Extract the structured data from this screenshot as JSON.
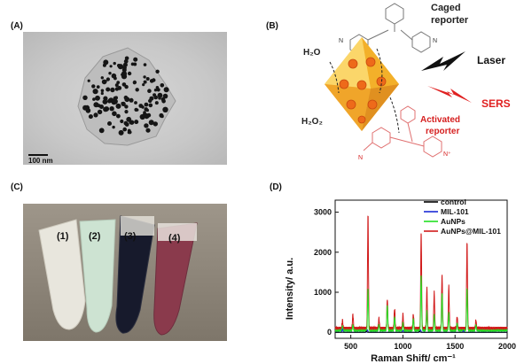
{
  "panels": {
    "a": {
      "label": "(A)",
      "scale_text": "100 nm"
    },
    "b": {
      "label": "(B)",
      "caged_reporter": [
        "Caged",
        "reporter"
      ],
      "h2o": "H₂O",
      "h2o2": "H₂O₂",
      "laser": "Laser",
      "sers": "SERS",
      "activated_reporter": [
        "Activated",
        "reporter"
      ],
      "n_plus": "N⁺",
      "n": "N"
    },
    "c": {
      "label": "(C)",
      "tubes": [
        "(1)",
        "(2)",
        "(3)",
        "(4)"
      ]
    },
    "d": {
      "label": "(D)"
    }
  },
  "colors": {
    "control": "#000000",
    "mil101": "#1a2bd6",
    "aunps": "#22e022",
    "aunps_mil101": "#d11a1a",
    "sers_red": "#e02020",
    "octahedron": "#f5b82e",
    "sphere": "#ee6a1a"
  },
  "chart_data": {
    "type": "line",
    "title": "",
    "xlabel": "Raman Shift/ cm⁻¹",
    "ylabel": "Intensity/ a.u.",
    "xlim": [
      350,
      2000
    ],
    "ylim": [
      -150,
      3300
    ],
    "xticks": [
      500,
      1000,
      1500,
      2000
    ],
    "yticks": [
      0,
      1000,
      2000,
      3000
    ],
    "legend_position": "top-right",
    "series": [
      {
        "name": "control",
        "color": "#000000",
        "peaks": [
          [
            650,
            30
          ],
          [
            1160,
            25
          ]
        ],
        "baseline": 0
      },
      {
        "name": "MIL-101",
        "color": "#1a2bd6",
        "peaks": [
          [
            420,
            80
          ],
          [
            660,
            60
          ],
          [
            1000,
            50
          ],
          [
            1170,
            60
          ],
          [
            1580,
            40
          ]
        ],
        "baseline": 0
      },
      {
        "name": "AuNPs",
        "color": "#22e022",
        "peaks": [
          [
            420,
            120
          ],
          [
            520,
            150
          ],
          [
            665,
            1050
          ],
          [
            770,
            150
          ],
          [
            850,
            650
          ],
          [
            920,
            350
          ],
          [
            1000,
            200
          ],
          [
            1100,
            300
          ],
          [
            1175,
            1400
          ],
          [
            1230,
            500
          ],
          [
            1300,
            400
          ],
          [
            1375,
            950
          ],
          [
            1440,
            450
          ],
          [
            1520,
            200
          ],
          [
            1615,
            1050
          ],
          [
            1700,
            150
          ]
        ],
        "baseline": 40
      },
      {
        "name": "AuNPs@MIL-101",
        "color": "#d11a1a",
        "peaks": [
          [
            420,
            200
          ],
          [
            520,
            350
          ],
          [
            665,
            2850
          ],
          [
            770,
            250
          ],
          [
            850,
            750
          ],
          [
            920,
            500
          ],
          [
            1000,
            350
          ],
          [
            1100,
            350
          ],
          [
            1175,
            2400
          ],
          [
            1230,
            1000
          ],
          [
            1300,
            900
          ],
          [
            1375,
            1350
          ],
          [
            1440,
            1050
          ],
          [
            1520,
            300
          ],
          [
            1615,
            2150
          ],
          [
            1700,
            200
          ]
        ],
        "baseline": 100
      }
    ]
  }
}
